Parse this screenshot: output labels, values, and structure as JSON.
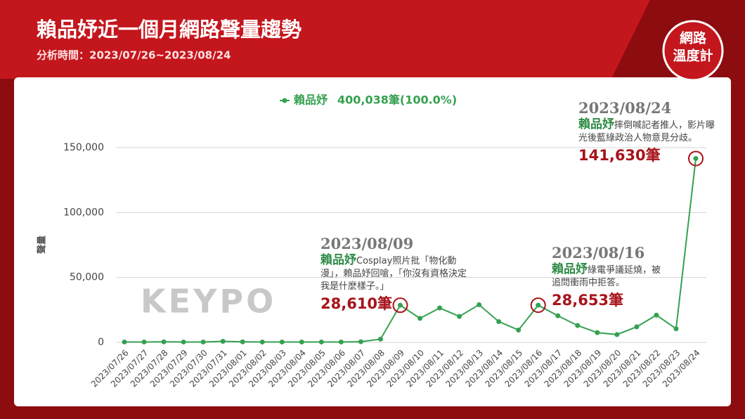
{
  "chart_data": {
    "type": "line",
    "title": "賴品妤近一個月網路聲量趨勢",
    "subtitle": "分析時間：2023/07/26~2023/08/24",
    "logo": [
      "網路",
      "溫度計"
    ],
    "watermark": "KEYPO",
    "y_label": "聲量",
    "legend_total": "400,038筆(100.0%)",
    "categories": [
      "2023/07/26",
      "2023/07/27",
      "2023/07/28",
      "2023/07/29",
      "2023/07/30",
      "2023/07/31",
      "2023/08/01",
      "2023/08/02",
      "2023/08/03",
      "2023/08/04",
      "2023/08/05",
      "2023/08/06",
      "2023/08/07",
      "2023/08/08",
      "2023/08/09",
      "2023/08/10",
      "2023/08/11",
      "2023/08/12",
      "2023/08/13",
      "2023/08/14",
      "2023/08/15",
      "2023/08/16",
      "2023/08/17",
      "2023/08/18",
      "2023/08/19",
      "2023/08/20",
      "2023/08/21",
      "2023/08/22",
      "2023/08/23",
      "2023/08/24"
    ],
    "series": [
      {
        "name": "賴品妤",
        "color": "#35a150",
        "values": [
          300,
          300,
          400,
          300,
          300,
          800,
          400,
          300,
          300,
          300,
          300,
          300,
          500,
          2500,
          28610,
          18500,
          26500,
          20000,
          29000,
          16000,
          9500,
          28653,
          20500,
          13000,
          7500,
          6000,
          12000,
          21000,
          10500,
          141630
        ]
      }
    ],
    "ylim": [
      0,
      150000
    ],
    "yticks": [
      {
        "value": 0,
        "label": "0"
      },
      {
        "value": 50000,
        "label": "50,000"
      },
      {
        "value": 100000,
        "label": "100,000"
      },
      {
        "value": 150000,
        "label": "150,000"
      }
    ],
    "grid": true,
    "annotations": [
      {
        "date": "2023/08/09",
        "name": "賴品妤",
        "text": "Cosplay照片批「物化動漫」，賴品妤回嗆，「你沒有資格決定我是什麼樣子。」",
        "label": "28,610筆"
      },
      {
        "date": "2023/08/16",
        "name": "賴品妤",
        "text": "綠電爭議延燒，被追問衝雨中拒答。",
        "label": "28,653筆"
      },
      {
        "date": "2023/08/24",
        "name": "賴品妤",
        "text": "摔倒喊記者推人，影片曝光後藍綠政治人物意見分歧。",
        "label": "141,630筆"
      }
    ]
  }
}
